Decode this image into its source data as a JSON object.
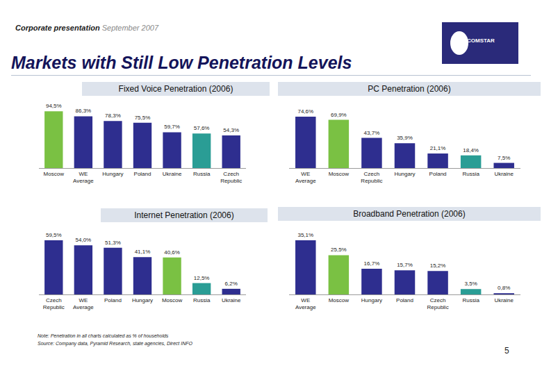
{
  "header": {
    "presentation": "Corporate presentation",
    "date": "September 2007",
    "title": "Markets with Still Low Penetration Levels",
    "logo": "COMSTAR"
  },
  "footer": {
    "note": "Note: Penetration in all charts calculated as % of households",
    "source": "Source: Company data, Pyramid Research, state agencies, Direct INFO",
    "page": "5"
  },
  "chart_data": [
    {
      "type": "bar",
      "title": "Fixed Voice Penetration (2006)",
      "categories": [
        "Moscow",
        "WE Average",
        "Hungary",
        "Poland",
        "Ukraine",
        "Russia",
        "Czech Republic"
      ],
      "values": [
        94.5,
        86.3,
        78.3,
        75.5,
        59.7,
        57.6,
        54.3
      ],
      "value_labels": [
        "94,5%",
        "86,3%",
        "78,3%",
        "75,5%",
        "59,7%",
        "57,6%",
        "54,3%"
      ],
      "colors": [
        "#7ac143",
        "#2e2e8f",
        "#2e2e8f",
        "#2e2e8f",
        "#2e2e8f",
        "#2a9d95",
        "#2e2e8f"
      ],
      "data_labels": true,
      "tick_labels": "x"
    },
    {
      "type": "bar",
      "title": "PC  Penetration (2006)",
      "categories": [
        "WE Average",
        "Moscow",
        "Czech Republic",
        "Hungary",
        "Poland",
        "Russia",
        "Ukraine"
      ],
      "values": [
        74.6,
        69.9,
        43.7,
        35.9,
        21.1,
        18.4,
        7.5
      ],
      "value_labels": [
        "74,6%",
        "69,9%",
        "43,7%",
        "35,9%",
        "21,1%",
        "18,4%",
        "7,5%"
      ],
      "colors": [
        "#2e2e8f",
        "#7ac143",
        "#2e2e8f",
        "#2e2e8f",
        "#2e2e8f",
        "#2a9d95",
        "#2e2e8f"
      ],
      "data_labels": true,
      "tick_labels": "x"
    },
    {
      "type": "bar",
      "title": "Internet  Penetration (2006)",
      "categories": [
        "Czech Republic",
        "WE Average",
        "Poland",
        "Hungary",
        "Moscow",
        "Russia",
        "Ukraine"
      ],
      "values": [
        59.5,
        54.0,
        51.3,
        41.1,
        40.6,
        12.5,
        6.2
      ],
      "value_labels": [
        "59,5%",
        "54,0%",
        "51,3%",
        "41,1%",
        "40,6%",
        "12,5%",
        "6,2%"
      ],
      "colors": [
        "#2e2e8f",
        "#2e2e8f",
        "#2e2e8f",
        "#2e2e8f",
        "#7ac143",
        "#2a9d95",
        "#2e2e8f"
      ],
      "data_labels": true,
      "tick_labels": "x"
    },
    {
      "type": "bar",
      "title": "Broadband  Penetration (2006)",
      "categories": [
        "WE Average",
        "Moscow",
        "Hungary",
        "Poland",
        "Czech Republic",
        "Russia",
        "Ukraine"
      ],
      "values": [
        35.1,
        25.5,
        16.7,
        15.7,
        15.2,
        3.5,
        0.8
      ],
      "value_labels": [
        "35,1%",
        "25,5%",
        "16,7%",
        "15,7%",
        "15,2%",
        "3,5%",
        "0,8%"
      ],
      "colors": [
        "#2e2e8f",
        "#7ac143",
        "#2e2e8f",
        "#2e2e8f",
        "#2e2e8f",
        "#2a9d95",
        "#2e2e8f"
      ],
      "data_labels": true,
      "tick_labels": "x"
    }
  ]
}
